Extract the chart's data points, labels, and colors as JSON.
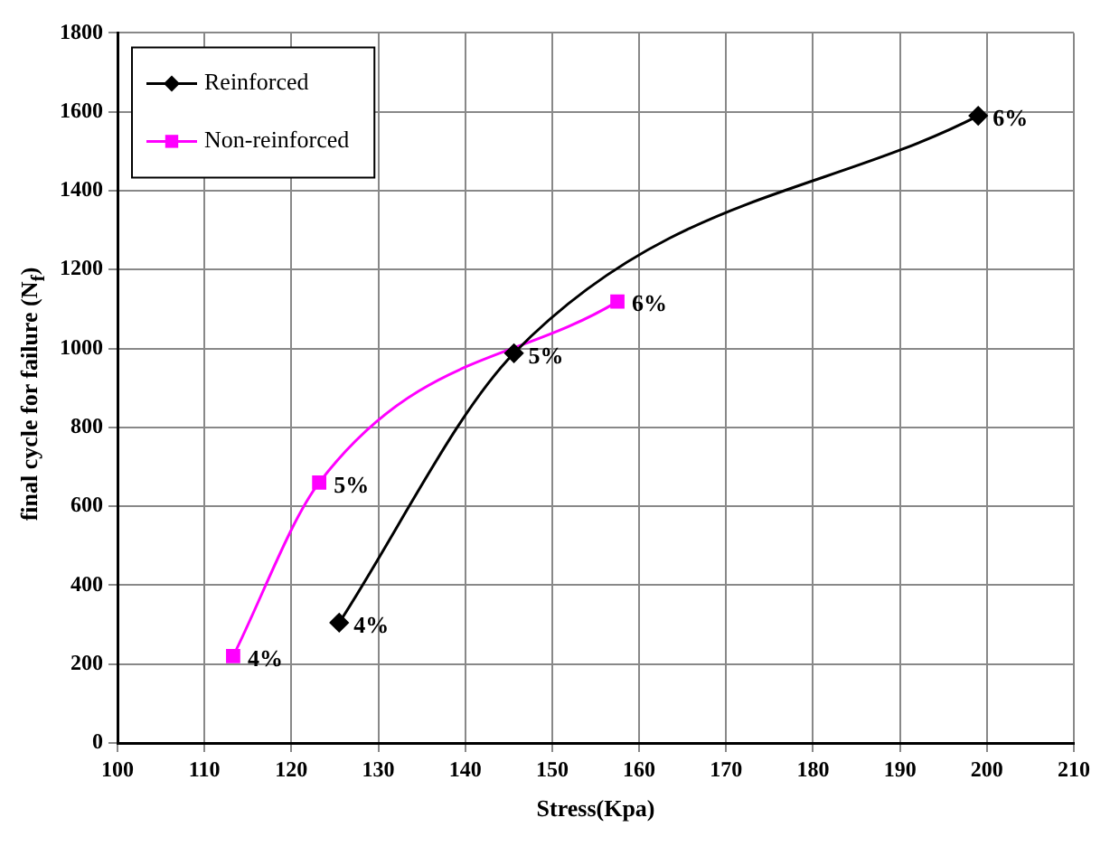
{
  "chart_data": {
    "type": "line",
    "xlabel": "Stress(Kpa)",
    "ylabel": "final cycle for failure (N$_{f}$)",
    "xlim": [
      100,
      210
    ],
    "xticks": [
      100,
      110,
      120,
      130,
      140,
      150,
      160,
      170,
      180,
      190,
      200,
      210
    ],
    "ylim": [
      0,
      1800
    ],
    "yticks": [
      0,
      200,
      400,
      600,
      800,
      1000,
      1200,
      1400,
      1600,
      1800
    ],
    "grid": true,
    "legend": "top left",
    "series": [
      {
        "name": "Reinforced",
        "color": "#000000",
        "marker": "diamond",
        "x": [
          125.5,
          145.6,
          199
        ],
        "values": [
          305,
          988,
          1590
        ]
      },
      {
        "name": "Non-reinforced",
        "color": "#ff00ff",
        "marker": "square",
        "x": [
          113.3,
          123.2,
          157.5
        ],
        "values": [
          220,
          660,
          1119
        ]
      }
    ],
    "annotations": [
      {
        "text": "4%",
        "x": 125.5,
        "y": 305
      },
      {
        "text": "5%",
        "x": 145.6,
        "y": 988
      },
      {
        "text": "6%",
        "x": 199,
        "y": 1590
      },
      {
        "text": "4%",
        "x": 113.3,
        "y": 220
      },
      {
        "text": "5%",
        "x": 123.2,
        "y": 660
      },
      {
        "text": "6%",
        "x": 157.5,
        "y": 1119
      }
    ]
  }
}
